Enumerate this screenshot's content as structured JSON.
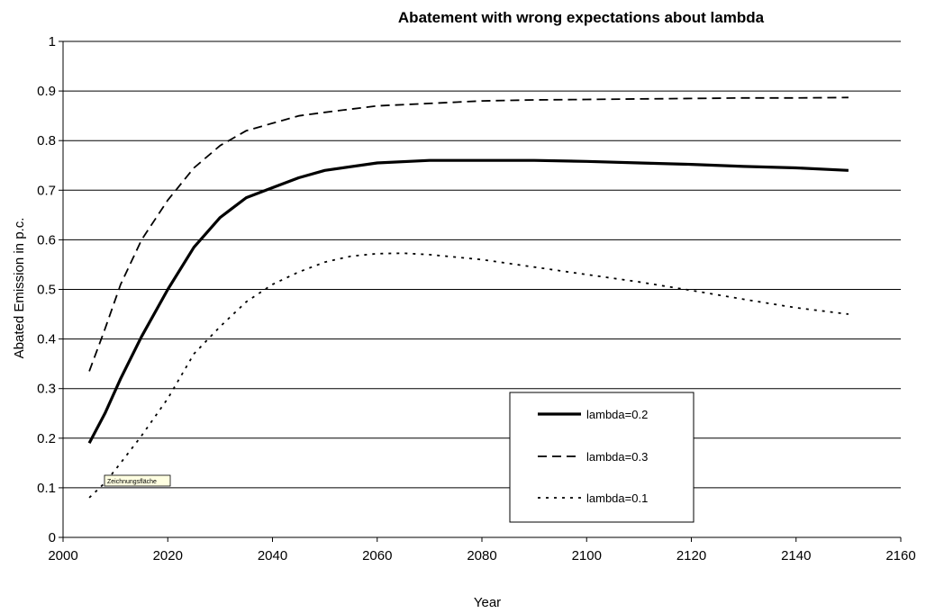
{
  "chart_data": {
    "type": "line",
    "title": "Abatement with wrong expectations about lambda",
    "xlabel": "Year",
    "ylabel": "Abated Emission in p.c.",
    "xlim": [
      2000,
      2160
    ],
    "ylim": [
      0,
      1
    ],
    "xticks": [
      2000,
      2020,
      2040,
      2060,
      2080,
      2100,
      2120,
      2140,
      2160
    ],
    "yticks": [
      0,
      0.1,
      0.2,
      0.3,
      0.4,
      0.5,
      0.6,
      0.7,
      0.8,
      0.9,
      1
    ],
    "grid": "horizontal",
    "legend_position": "bottom-right",
    "series": [
      {
        "name": "lambda=0.2",
        "style": "solid",
        "x": [
          2005,
          2008,
          2011,
          2015,
          2020,
          2025,
          2030,
          2035,
          2040,
          2045,
          2050,
          2060,
          2070,
          2080,
          2090,
          2100,
          2110,
          2120,
          2130,
          2140,
          2150
        ],
        "y": [
          0.19,
          0.25,
          0.32,
          0.405,
          0.5,
          0.585,
          0.645,
          0.685,
          0.705,
          0.725,
          0.74,
          0.755,
          0.76,
          0.76,
          0.76,
          0.758,
          0.755,
          0.752,
          0.748,
          0.745,
          0.74
        ]
      },
      {
        "name": "lambda=0.3",
        "style": "dashed",
        "x": [
          2005,
          2008,
          2011,
          2015,
          2020,
          2025,
          2030,
          2035,
          2040,
          2045,
          2050,
          2060,
          2070,
          2080,
          2090,
          2100,
          2110,
          2120,
          2130,
          2140,
          2150
        ],
        "y": [
          0.335,
          0.42,
          0.51,
          0.6,
          0.68,
          0.745,
          0.79,
          0.82,
          0.835,
          0.85,
          0.857,
          0.87,
          0.875,
          0.88,
          0.882,
          0.883,
          0.884,
          0.885,
          0.886,
          0.886,
          0.887
        ]
      },
      {
        "name": "lambda=0.1",
        "style": "dotted",
        "x": [
          2005,
          2008,
          2011,
          2015,
          2020,
          2025,
          2030,
          2035,
          2040,
          2045,
          2050,
          2055,
          2060,
          2065,
          2070,
          2080,
          2090,
          2100,
          2110,
          2120,
          2130,
          2140,
          2150
        ],
        "y": [
          0.08,
          0.11,
          0.15,
          0.205,
          0.28,
          0.37,
          0.425,
          0.475,
          0.51,
          0.535,
          0.555,
          0.567,
          0.572,
          0.573,
          0.57,
          0.56,
          0.545,
          0.53,
          0.515,
          0.498,
          0.48,
          0.463,
          0.45
        ]
      }
    ]
  },
  "tooltip": {
    "label": "Zeichnungsfläche"
  }
}
